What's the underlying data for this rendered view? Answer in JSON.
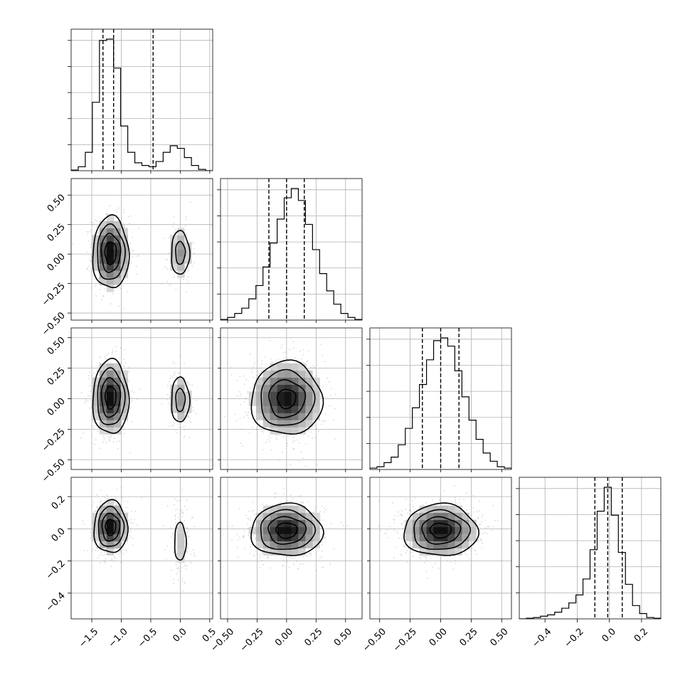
{
  "chart_data": {
    "type": "corner",
    "title": "",
    "grid": true,
    "n_params": 4,
    "params": [
      {
        "name": "",
        "range": [
          -1.85,
          0.55
        ],
        "ticks": [
          -1.5,
          -1.0,
          -0.5,
          0.0,
          0.5
        ],
        "tick_labels": [
          "−1.5",
          "−1.0",
          "−0.5",
          "0.0",
          "0.5"
        ]
      },
      {
        "name": "",
        "range": [
          -0.56,
          0.64
        ],
        "ticks": [
          -0.5,
          -0.25,
          0.0,
          0.25,
          0.5
        ],
        "tick_labels": [
          "−0.50",
          "−0.25",
          "0.00",
          "0.25",
          "0.50"
        ]
      },
      {
        "name": "",
        "range": [
          -0.58,
          0.58
        ],
        "ticks": [
          -0.5,
          -0.25,
          0.0,
          0.25,
          0.5
        ],
        "tick_labels": [
          "−0.50",
          "−0.25",
          "0.00",
          "0.25",
          "0.50"
        ]
      },
      {
        "name": "",
        "range": [
          -0.56,
          0.32
        ],
        "ticks": [
          -0.4,
          -0.2,
          0.0,
          0.2
        ],
        "tick_labels": [
          "−0.4",
          "−0.2",
          "0.0",
          "0.2"
        ]
      }
    ],
    "quantiles": [
      0.16,
      0.5,
      0.84
    ],
    "quantile_values": [
      [
        -1.31,
        -1.13,
        -0.46
      ],
      [
        -0.15,
        0.0,
        0.15
      ],
      [
        -0.15,
        0.0,
        0.15
      ],
      [
        -0.09,
        -0.01,
        0.08
      ]
    ],
    "histograms": [
      {
        "bin_edges": [
          -1.85,
          -1.73,
          -1.61,
          -1.49,
          -1.37,
          -1.25,
          -1.13,
          -1.01,
          -0.89,
          -0.77,
          -0.65,
          -0.53,
          -0.41,
          -0.29,
          -0.17,
          -0.05,
          0.07,
          0.19,
          0.31,
          0.43,
          0.55
        ],
        "counts": [
          0.005,
          0.03,
          0.14,
          0.52,
          0.99,
          1.0,
          0.78,
          0.34,
          0.14,
          0.06,
          0.04,
          0.03,
          0.07,
          0.14,
          0.19,
          0.17,
          0.1,
          0.04,
          0.01,
          0.0
        ]
      },
      {
        "bin_edges": [
          -0.56,
          -0.5,
          -0.44,
          -0.38,
          -0.32,
          -0.26,
          -0.2,
          -0.14,
          -0.08,
          -0.02,
          0.04,
          0.1,
          0.16,
          0.22,
          0.28,
          0.34,
          0.4,
          0.46,
          0.52,
          0.58,
          0.64
        ],
        "counts": [
          0.005,
          0.02,
          0.05,
          0.09,
          0.16,
          0.26,
          0.4,
          0.58,
          0.76,
          0.92,
          0.99,
          0.9,
          0.72,
          0.53,
          0.35,
          0.22,
          0.12,
          0.05,
          0.02,
          0.005
        ]
      },
      {
        "bin_edges": [
          -0.58,
          -0.522,
          -0.464,
          -0.406,
          -0.348,
          -0.29,
          -0.232,
          -0.174,
          -0.116,
          -0.058,
          0.0,
          0.058,
          0.116,
          0.174,
          0.232,
          0.29,
          0.348,
          0.406,
          0.464,
          0.522,
          0.58
        ],
        "counts": [
          0.01,
          0.02,
          0.05,
          0.09,
          0.18,
          0.3,
          0.45,
          0.62,
          0.8,
          0.94,
          0.96,
          0.9,
          0.72,
          0.53,
          0.36,
          0.22,
          0.12,
          0.06,
          0.02,
          0.01
        ]
      },
      {
        "bin_edges": [
          -0.56,
          -0.516,
          -0.472,
          -0.428,
          -0.384,
          -0.34,
          -0.296,
          -0.252,
          -0.208,
          -0.164,
          -0.12,
          -0.076,
          -0.032,
          0.012,
          0.056,
          0.1,
          0.144,
          0.188,
          0.232,
          0.276,
          0.32
        ],
        "counts": [
          0.0,
          0.005,
          0.01,
          0.02,
          0.03,
          0.05,
          0.08,
          0.12,
          0.18,
          0.3,
          0.52,
          0.81,
          0.99,
          0.78,
          0.5,
          0.26,
          0.1,
          0.04,
          0.01,
          0.005
        ]
      }
    ],
    "density_pairs": [
      {
        "x_param": 0,
        "y_param": 1,
        "modes": [
          {
            "center": [
              -1.18,
              0.01
            ],
            "sigma": [
              0.15,
              0.15
            ],
            "weight": 0.82
          },
          {
            "center": [
              0.0,
              0.01
            ],
            "sigma": [
              0.1,
              0.12
            ],
            "weight": 0.18
          }
        ]
      },
      {
        "x_param": 0,
        "y_param": 2,
        "modes": [
          {
            "center": [
              -1.18,
              0.01
            ],
            "sigma": [
              0.15,
              0.15
            ],
            "weight": 0.82
          },
          {
            "center": [
              0.0,
              -0.01
            ],
            "sigma": [
              0.1,
              0.12
            ],
            "weight": 0.18
          }
        ]
      },
      {
        "x_param": 0,
        "y_param": 3,
        "modes": [
          {
            "center": [
              -1.18,
              0.01
            ],
            "sigma": [
              0.14,
              0.08
            ],
            "weight": 0.82
          },
          {
            "center": [
              0.0,
              -0.08
            ],
            "sigma": [
              0.1,
              0.12
            ],
            "weight": 0.18
          }
        ]
      },
      {
        "x_param": 1,
        "y_param": 2,
        "modes": [
          {
            "center": [
              0.0,
              0.0
            ],
            "sigma": [
              0.15,
              0.15
            ],
            "weight": 1.0
          }
        ]
      },
      {
        "x_param": 1,
        "y_param": 3,
        "modes": [
          {
            "center": [
              0.0,
              -0.01
            ],
            "sigma": [
              0.15,
              0.08
            ],
            "weight": 1.0
          }
        ]
      },
      {
        "x_param": 2,
        "y_param": 3,
        "modes": [
          {
            "center": [
              0.0,
              -0.01
            ],
            "sigma": [
              0.15,
              0.08
            ],
            "weight": 1.0
          }
        ]
      }
    ]
  }
}
